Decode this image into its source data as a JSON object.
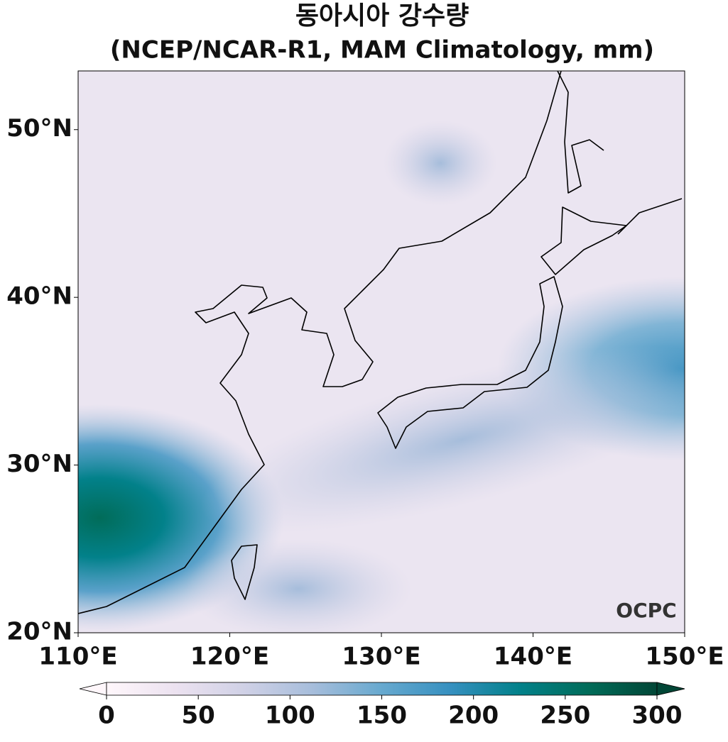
{
  "chart_data": {
    "type": "map",
    "title": "동아시아 강수량",
    "subtitle": "(NCEP/NCAR-R1, MAM Climatology, mm)",
    "xlim": [
      110,
      150
    ],
    "ylim": [
      20,
      53.5
    ],
    "xticks": [
      {
        "value": 110,
        "label": "110°E"
      },
      {
        "value": 120,
        "label": "120°E"
      },
      {
        "value": 130,
        "label": "130°E"
      },
      {
        "value": 140,
        "label": "140°E"
      },
      {
        "value": 150,
        "label": "150°E"
      }
    ],
    "yticks": [
      {
        "value": 20,
        "label": "20°N"
      },
      {
        "value": 30,
        "label": "30°N"
      },
      {
        "value": 40,
        "label": "40°N"
      },
      {
        "value": 50,
        "label": "50°N"
      }
    ],
    "colorbar": {
      "lim": [
        0,
        300
      ],
      "ticks": [
        0,
        50,
        100,
        150,
        200,
        250,
        300
      ],
      "colors": [
        "#fff7fb",
        "#ece2f0",
        "#d0d1e6",
        "#a6bddb",
        "#67a9cf",
        "#3690c0",
        "#02818a",
        "#016c59",
        "#014636"
      ]
    },
    "logo": "OCPC"
  }
}
